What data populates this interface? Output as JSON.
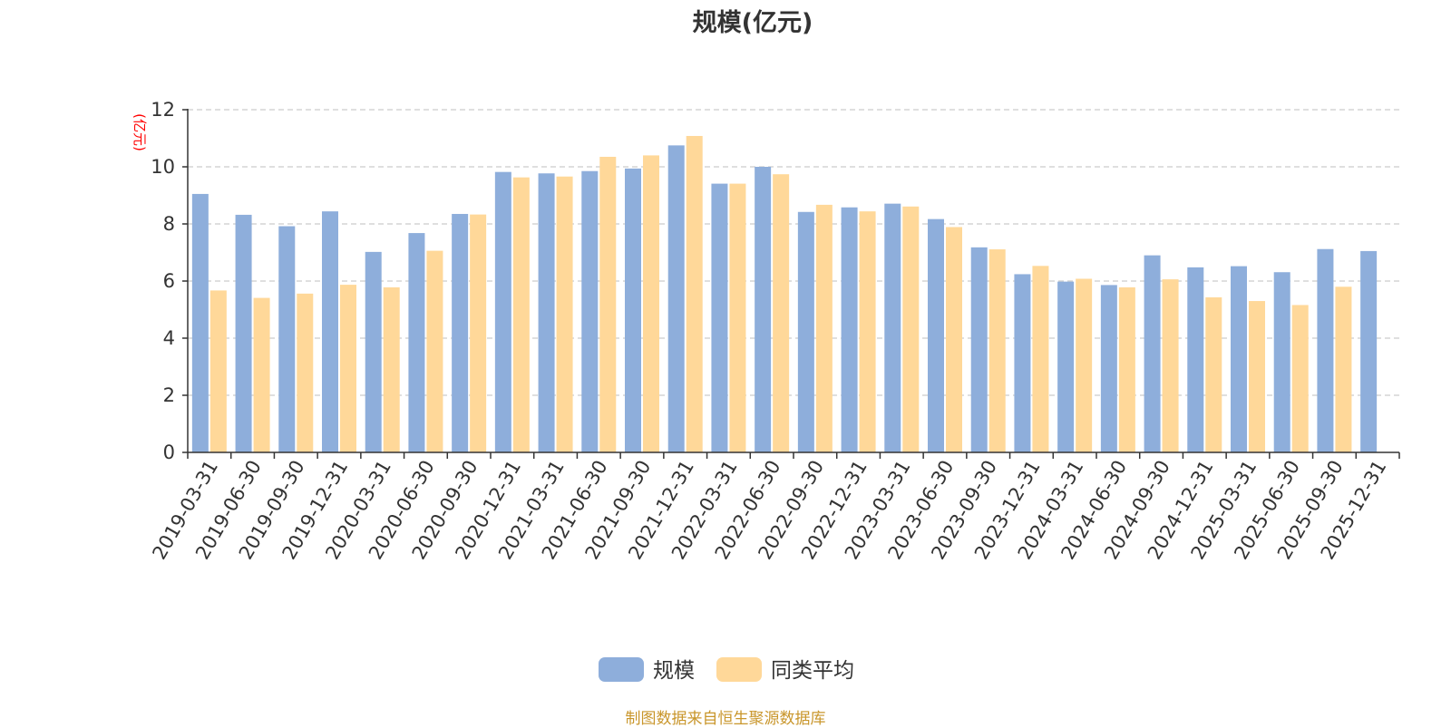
{
  "chart_data": {
    "type": "bar",
    "title": "规模(亿元)",
    "ylabel": "(亿元)",
    "xlabel": "",
    "ylim": [
      0,
      12
    ],
    "yticks": [
      0,
      2,
      4,
      6,
      8,
      10,
      12
    ],
    "grid": true,
    "legend_position": "bottom-center",
    "categories": [
      "2019-03-31",
      "2019-06-30",
      "2019-09-30",
      "2019-12-31",
      "2020-03-31",
      "2020-06-30",
      "2020-09-30",
      "2020-12-31",
      "2021-03-31",
      "2021-06-30",
      "2021-09-30",
      "2021-12-31",
      "2022-03-31",
      "2022-06-30",
      "2022-09-30",
      "2022-12-31",
      "2023-03-31",
      "2023-06-30",
      "2023-09-30",
      "2023-12-31",
      "2024-03-31",
      "2024-06-30",
      "2024-09-30",
      "2024-12-31",
      "2025-03-31",
      "2025-06-30",
      "2025-09-30",
      "2025-12-31"
    ],
    "series": [
      {
        "name": "规模",
        "color": "#8EAEDB",
        "values": [
          9.05,
          8.32,
          7.92,
          8.44,
          7.02,
          7.68,
          8.35,
          9.82,
          9.77,
          9.85,
          9.94,
          10.75,
          9.41,
          10.0,
          8.42,
          8.58,
          8.71,
          8.17,
          7.18,
          6.24,
          5.98,
          5.86,
          6.9,
          6.48,
          6.52,
          6.31,
          7.12,
          7.05
        ]
      },
      {
        "name": "同类平均",
        "color": "#FFD899",
        "values": [
          5.67,
          5.41,
          5.56,
          5.87,
          5.78,
          7.06,
          8.33,
          9.63,
          9.66,
          10.35,
          10.4,
          11.08,
          9.41,
          9.74,
          8.67,
          8.44,
          8.61,
          7.89,
          7.11,
          6.53,
          6.08,
          5.78,
          6.06,
          5.43,
          5.3,
          5.16,
          5.8,
          null
        ]
      }
    ]
  },
  "source_note": "制图数据来自恒生聚源数据库",
  "colors": {
    "title": "#333333",
    "axis": "#333333",
    "tick_label": "#333333",
    "ylabel": "#ff0000",
    "grid": "#cccccc",
    "source_note": "#c9962b"
  }
}
